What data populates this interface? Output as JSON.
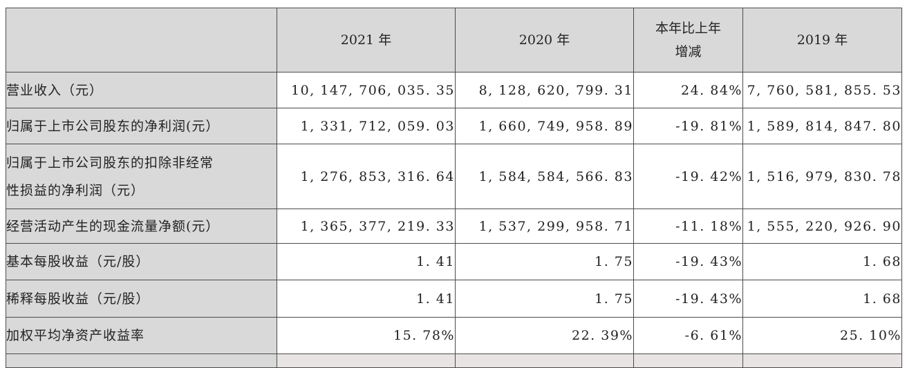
{
  "table": {
    "headers": [
      "",
      "2021 年",
      "2020 年",
      "本年比上年增减",
      "2019 年"
    ],
    "header_lines": {
      "col3_line1": "本年比上年",
      "col3_line2": "增减"
    },
    "rows": [
      {
        "label": "营业收入（元）",
        "values": [
          "10, 147, 706, 035. 35",
          "8, 128, 620, 799. 31",
          "24. 84%",
          "7, 760, 581, 855. 53"
        ]
      },
      {
        "label": "归属于上市公司股东的净利润(元）",
        "values": [
          "1, 331, 712, 059. 03",
          "1, 660, 749, 958. 89",
          "-19. 81%",
          "1, 589, 814, 847. 80"
        ]
      },
      {
        "label_line1": "归属于上市公司股东的扣除非经常",
        "label_line2": "性损益的净利润（元）",
        "values": [
          "1, 276, 853, 316. 64",
          "1, 584, 584, 566. 83",
          "-19. 42%",
          "1, 516, 979, 830. 78"
        ]
      },
      {
        "label": "经营活动产生的现金流量净额(元）",
        "values": [
          "1, 365, 377, 219. 33",
          "1, 537, 299, 958. 71",
          "-11. 18%",
          "1, 555, 220, 926. 90"
        ]
      },
      {
        "label": "基本每股收益（元/股）",
        "values": [
          "1. 41",
          "1. 75",
          "-19. 43%",
          "1. 68"
        ]
      },
      {
        "label": "稀释每股收益（元/股）",
        "values": [
          "1. 41",
          "1. 75",
          "-19. 43%",
          "1. 68"
        ]
      },
      {
        "label": "加权平均净资产收益率",
        "values": [
          "15. 78%",
          "22. 39%",
          "-6. 61%",
          "25. 10%"
        ]
      }
    ]
  },
  "colors": {
    "header_background": "#d9d9d9",
    "border": "#4a4a4a",
    "text": "#222222"
  }
}
